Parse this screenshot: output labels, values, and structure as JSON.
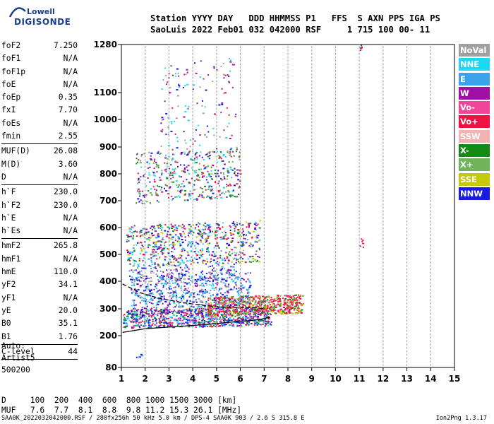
{
  "logo": {
    "line1": "Lowell",
    "line2": "DIGISONDE"
  },
  "header": {
    "line1": "Station YYYY DAY   DDD HHMMSS P1   FFS  S AXN PPS IGA PS",
    "line2": "SaoLuis 2022 Feb01 032 042000 RSF     1 715 100 00- 11"
  },
  "params": [
    {
      "name": "foF2",
      "value": "7.250"
    },
    {
      "name": "foF1",
      "value": "N/A"
    },
    {
      "name": "foF1p",
      "value": "N/A"
    },
    {
      "name": "foE",
      "value": "N/A"
    },
    {
      "name": "foEp",
      "value": "0.35"
    },
    {
      "name": "fxI",
      "value": "7.70"
    },
    {
      "name": "foEs",
      "value": "N/A"
    },
    {
      "name": "fmin",
      "value": "2.55"
    },
    {
      "sep": true
    },
    {
      "name": "MUF(D)",
      "value": "26.08"
    },
    {
      "name": "M(D)",
      "value": "3.60"
    },
    {
      "name": "D",
      "value": "N/A"
    },
    {
      "sep": true
    },
    {
      "name": "h`F",
      "value": "230.0"
    },
    {
      "name": "h`F2",
      "value": "230.0"
    },
    {
      "name": "h`E",
      "value": "N/A"
    },
    {
      "name": "h`Es",
      "value": "N/A"
    },
    {
      "sep": true
    },
    {
      "name": "hmF2",
      "value": "265.8"
    },
    {
      "name": "hmF1",
      "value": "N/A"
    },
    {
      "name": "hmE",
      "value": "110.0"
    },
    {
      "name": "yF2",
      "value": "34.1"
    },
    {
      "name": "yF1",
      "value": "N/A"
    },
    {
      "name": "yE",
      "value": "20.0"
    },
    {
      "name": "B0",
      "value": "35.1"
    },
    {
      "name": "B1",
      "value": "1.76"
    },
    {
      "sep": true
    },
    {
      "name": "C-level",
      "value": "44"
    },
    {
      "sep": true
    }
  ],
  "auto": {
    "l1": "Auto:",
    "l2": "Artist5",
    "l3": "500200"
  },
  "legend": [
    {
      "label": "NoVal",
      "color": "#a0a0a0"
    },
    {
      "label": "NNE",
      "color": "#19d9f5"
    },
    {
      "label": "E",
      "color": "#3ba3ee"
    },
    {
      "label": "W",
      "color": "#a10fa3"
    },
    {
      "label": "Vo-",
      "color": "#f0459a"
    },
    {
      "label": "Vo+",
      "color": "#ee1144"
    },
    {
      "label": "SSW",
      "color": "#f3b3b3"
    },
    {
      "label": "X-",
      "color": "#168a16"
    },
    {
      "label": "X+",
      "color": "#6fb35b"
    },
    {
      "label": "SSE",
      "color": "#c8c80a"
    },
    {
      "label": "NNW",
      "color": "#1a1ae6"
    }
  ],
  "bottom": {
    "d_label": "D",
    "d_values": "100  200  400  600  800 1000 1500 3000 [km]",
    "muf_label": "MUF",
    "muf_values": "7.6  7.7  8.1  8.8  9.8 11.2 15.3 26.1 [MHz]"
  },
  "footer": {
    "left": "SAA0K_2022032042000.RSF / 280fx256h 50 kHz 5.0 km / DPS-4 SAA0K 903 / 2.6 S 315.8 E",
    "right": "Ion2Png 1.3.17"
  },
  "chart_data": {
    "type": "scatter",
    "x_ticks": [
      1,
      2,
      3,
      4,
      5,
      6,
      7,
      8,
      9,
      10,
      11,
      12,
      13,
      14,
      15
    ],
    "y_ticks": [
      80,
      200,
      300,
      400,
      500,
      600,
      700,
      800,
      900,
      1000,
      1100,
      1280
    ],
    "xlim": [
      1,
      15
    ],
    "ylim": [
      80,
      1280
    ],
    "traces": [
      {
        "name": "O-trace profile",
        "color": "#000000",
        "dash": false,
        "x": [
          1.05,
          2,
          3,
          4,
          5,
          5.8,
          6.4,
          6.9,
          7.25
        ],
        "y": [
          212,
          226,
          232,
          238,
          245,
          252,
          256,
          262,
          268
        ]
      },
      {
        "name": "upper profile",
        "color": "#000000",
        "dash": true,
        "x": [
          1.05,
          1.8,
          2.6,
          3.6,
          4.5,
          5.3,
          6.0,
          6.6,
          7.05
        ],
        "y": [
          390,
          358,
          338,
          322,
          312,
          306,
          304,
          304,
          300
        ]
      }
    ],
    "clusters": [
      {
        "x0": 1.05,
        "x1": 7.3,
        "y0": 230,
        "y1": 300,
        "n": 900,
        "colors": [
          "#1a1ae6",
          "#1a1ae6",
          "#3ba3ee",
          "#19d9f5",
          "#a10fa3",
          "#f0459a",
          "#ee1144",
          "#168a16"
        ]
      },
      {
        "x0": 4.6,
        "x1": 8.6,
        "y0": 275,
        "y1": 345,
        "n": 700,
        "colors": [
          "#ee1144",
          "#ee1144",
          "#f0459a",
          "#168a16",
          "#6fb35b",
          "#c8c80a"
        ]
      },
      {
        "x0": 1.4,
        "x1": 6.4,
        "y0": 300,
        "y1": 420,
        "n": 600,
        "colors": [
          "#1a1ae6",
          "#3ba3ee",
          "#19d9f5",
          "#a0a0a0",
          "#a10fa3"
        ]
      },
      {
        "x0": 1.2,
        "x1": 6.8,
        "y0": 455,
        "y1": 610,
        "n": 700,
        "colors": [
          "#1a1ae6",
          "#3ba3ee",
          "#a10fa3",
          "#ee1144",
          "#168a16",
          "#c8c80a",
          "#19d9f5"
        ]
      },
      {
        "x0": 1.6,
        "x1": 6.0,
        "y0": 690,
        "y1": 880,
        "n": 450,
        "colors": [
          "#1a1ae6",
          "#a10fa3",
          "#ee1144",
          "#168a16",
          "#6fb35b",
          "#19d9f5"
        ]
      },
      {
        "x0": 2.6,
        "x1": 5.8,
        "y0": 880,
        "y1": 1200,
        "n": 140,
        "colors": [
          "#a10fa3",
          "#1a1ae6",
          "#19d9f5",
          "#a0a0a0",
          "#ee1144"
        ]
      },
      {
        "x0": 1.3,
        "x1": 5.8,
        "y0": 400,
        "y1": 460,
        "n": 160,
        "colors": [
          "#1a1ae6",
          "#3ba3ee",
          "#a0a0a0",
          "#a10fa3"
        ]
      },
      {
        "x0": 11.0,
        "x1": 11.15,
        "y0": 520,
        "y1": 560,
        "n": 6,
        "colors": [
          "#ee1144",
          "#a10fa3"
        ]
      },
      {
        "x0": 11.0,
        "x1": 11.15,
        "y0": 1260,
        "y1": 1285,
        "n": 6,
        "colors": [
          "#ee1144",
          "#168a16",
          "#a10fa3"
        ]
      },
      {
        "x0": 1.6,
        "x1": 1.9,
        "y0": 120,
        "y1": 135,
        "n": 6,
        "colors": [
          "#1a1ae6",
          "#3ba3ee"
        ]
      }
    ]
  }
}
